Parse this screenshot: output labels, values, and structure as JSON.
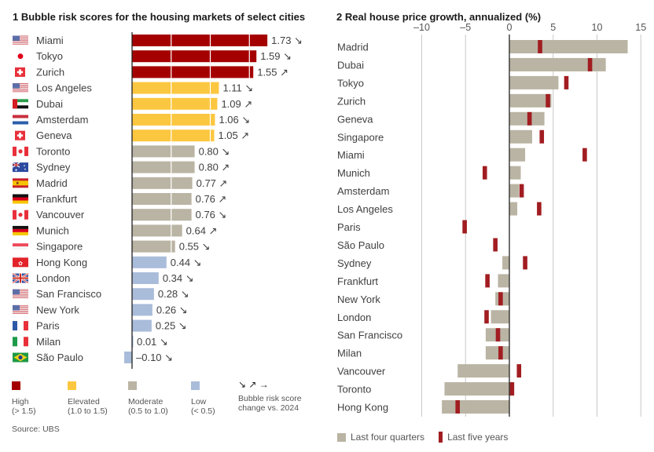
{
  "chart_data": [
    {
      "type": "bar",
      "title": "1 Bubble risk scores for the housing markets of select cities",
      "orientation": "horizontal",
      "xlim": [
        -0.1,
        1.75
      ],
      "gridlines": [
        0.5,
        1.0,
        1.5
      ],
      "categories": [
        "Miami",
        "Tokyo",
        "Zurich",
        "Los Angeles",
        "Dubai",
        "Amsterdam",
        "Geneva",
        "Toronto",
        "Sydney",
        "Madrid",
        "Frankfurt",
        "Vancouver",
        "Munich",
        "Singapore",
        "Hong Kong",
        "London",
        "San Francisco",
        "New York",
        "Paris",
        "Milan",
        "São Paulo"
      ],
      "values": [
        1.73,
        1.59,
        1.55,
        1.11,
        1.09,
        1.06,
        1.05,
        0.8,
        0.8,
        0.77,
        0.76,
        0.76,
        0.64,
        0.55,
        0.44,
        0.34,
        0.28,
        0.26,
        0.25,
        0.01,
        -0.1
      ],
      "value_labels": [
        "1.73",
        "1.59",
        "1.55",
        "1.11",
        "1.09",
        "1.06",
        "1.05",
        "0.80",
        "0.80",
        "0.77",
        "0.76",
        "0.76",
        "0.64",
        "0.55",
        "0.44",
        "0.34",
        "0.28",
        "0.26",
        "0.25",
        "0.01",
        "–0.10"
      ],
      "change_vs_2024": [
        "↘",
        "↘",
        "↗",
        "↘",
        "↗",
        "↘",
        "↗",
        "↘",
        "↗",
        "↗",
        "↗",
        "↘",
        "↗",
        "↘",
        "↘",
        "↘",
        "↘",
        "↘",
        "↘",
        "↘",
        "↘"
      ],
      "flags": [
        "us",
        "jp",
        "ch",
        "us",
        "ae",
        "nl",
        "ch",
        "ca",
        "au",
        "es",
        "de",
        "ca",
        "de",
        "sg",
        "hk",
        "gb",
        "us",
        "us",
        "fr",
        "it",
        "br"
      ],
      "risk_categories": [
        {
          "key": "high",
          "label": "High",
          "range": "(> 1.5)",
          "color": "#a50000",
          "min": 1.5
        },
        {
          "key": "elevated",
          "label": "Elevated",
          "range": "(1.0 to 1.5)",
          "color": "#fcc740",
          "min": 1.0
        },
        {
          "key": "moderate",
          "label": "Moderate",
          "range": "(0.5 to 1.0)",
          "color": "#bab4a4",
          "min": 0.5
        },
        {
          "key": "low",
          "label": "Low",
          "range": "(< 0.5)",
          "color": "#a9bcda",
          "min": -99
        }
      ],
      "arrow_legend": {
        "symbols": "↘ ↗ →",
        "text_line1": "Bubble risk score",
        "text_line2": "change vs. 2024"
      },
      "source": "Source: UBS"
    },
    {
      "type": "bar",
      "title": "2 Real house price growth, annualized (%)",
      "orientation": "horizontal",
      "xlim": [
        -10,
        15
      ],
      "xticks": [
        -10,
        -5,
        0,
        5,
        10,
        15
      ],
      "xtick_labels": [
        "–10",
        "–5",
        "0",
        "5",
        "10",
        "15"
      ],
      "grid": true,
      "categories": [
        "Madrid",
        "Dubai",
        "Tokyo",
        "Zurich",
        "Geneva",
        "Singapore",
        "Miami",
        "Munich",
        "Amsterdam",
        "Los Angeles",
        "Paris",
        "São Paulo",
        "Sydney",
        "Frankfurt",
        "New York",
        "London",
        "San Francisco",
        "Milan",
        "Vancouver",
        "Toronto",
        "Hong Kong"
      ],
      "series": [
        {
          "name": "Last four quarters",
          "type": "bar",
          "color": "#bab4a4",
          "values": [
            13.5,
            11.0,
            5.6,
            4.8,
            4.0,
            2.6,
            1.8,
            1.3,
            1.1,
            0.9,
            0.0,
            0.0,
            -0.8,
            -1.3,
            -1.6,
            -2.1,
            -2.7,
            -2.7,
            -5.9,
            -7.4,
            -7.7
          ]
        },
        {
          "name": "Last five years",
          "type": "marker",
          "color": "#a11d21",
          "values": [
            3.5,
            9.2,
            6.5,
            4.4,
            2.3,
            3.7,
            8.6,
            -2.8,
            1.4,
            3.4,
            -5.1,
            -1.6,
            1.8,
            -2.5,
            -1.0,
            -2.6,
            -1.3,
            -1.0,
            1.1,
            0.3,
            -5.9
          ]
        }
      ],
      "legend": [
        "Last four quarters",
        "Last five years"
      ],
      "legend_position": "bottom-left"
    }
  ]
}
